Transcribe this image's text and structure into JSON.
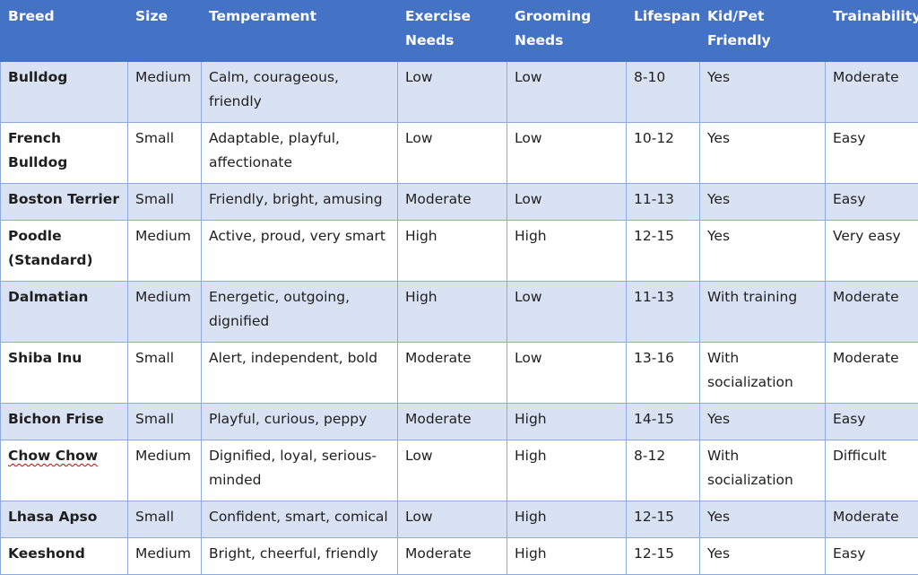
{
  "headers": [
    "Breed",
    "Size",
    "Temperament",
    "Exercise Needs",
    "Grooming Needs",
    "Lifespan",
    "Kid/Pet Friendly",
    "Trainability"
  ],
  "rows": [
    [
      "Bulldog",
      "Medium",
      "Calm, courageous, friendly",
      "Low",
      "Low",
      "8-10",
      "Yes",
      "Moderate"
    ],
    [
      "French Bulldog",
      "Small",
      "Adaptable, playful, affectionate",
      "Low",
      "Low",
      "10-12",
      "Yes",
      "Easy"
    ],
    [
      "Boston Terrier",
      "Small",
      "Friendly, bright, amusing",
      "Moderate",
      "Low",
      "11-13",
      "Yes",
      "Easy"
    ],
    [
      "Poodle (Standard)",
      "Medium",
      "Active, proud, very smart",
      "High",
      "High",
      "12-15",
      "Yes",
      "Very easy"
    ],
    [
      "Dalmatian",
      "Medium",
      "Energetic, outgoing, dignified",
      "High",
      "Low",
      "11-13",
      "With training",
      "Moderate"
    ],
    [
      "Shiba Inu",
      "Small",
      "Alert, independent, bold",
      "Moderate",
      "Low",
      "13-16",
      "With socialization",
      "Moderate"
    ],
    [
      "Bichon Frise",
      "Small",
      "Playful, curious, peppy",
      "Moderate",
      "High",
      "14-15",
      "Yes",
      "Easy"
    ],
    [
      "Chow Chow",
      "Medium",
      "Dignified, loyal, serious-minded",
      "Low",
      "High",
      "8-12",
      "With socialization",
      "Difficult"
    ],
    [
      "Lhasa Apso",
      "Small",
      "Confident, smart, comical",
      "Low",
      "High",
      "12-15",
      "Yes",
      "Moderate"
    ],
    [
      "Keeshond",
      "Medium",
      "Bright, cheerful, friendly",
      "Moderate",
      "High",
      "12-15",
      "Yes",
      "Easy"
    ]
  ],
  "colors": {
    "header_bg": "#4472c4",
    "band_bg": "#d9e2f3",
    "grid": "#8eaadb",
    "spellcheck": "#d00000"
  }
}
